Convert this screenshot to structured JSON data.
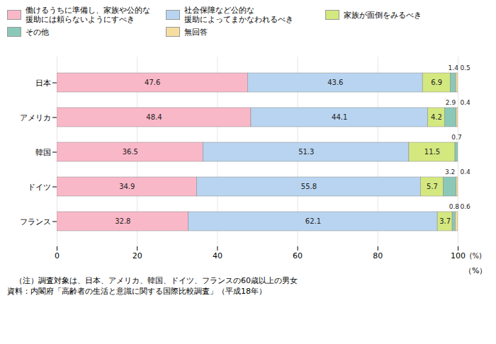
{
  "chart_data": {
    "type": "bar",
    "orientation": "horizontal",
    "stacked": true,
    "categories": [
      "日本",
      "アメリカ",
      "韓国",
      "ドイツ",
      "フランス"
    ],
    "series": [
      {
        "name": "働けるうちに準備し、家族や公的な\n援助には頼らないようにすべき",
        "color": "#f9b8c8",
        "values": [
          47.6,
          48.4,
          36.5,
          34.9,
          32.8
        ]
      },
      {
        "name": "社会保障など公的な\n援助によってまかなわれるべき",
        "color": "#b8d4f0",
        "values": [
          43.6,
          44.1,
          51.3,
          55.8,
          62.1
        ]
      },
      {
        "name": "家族が面倒をみるべき",
        "color": "#d4e880",
        "values": [
          6.9,
          4.2,
          11.5,
          5.7,
          3.7
        ]
      },
      {
        "name": "その他",
        "color": "#8bc8b8",
        "values": [
          1.4,
          2.9,
          0.7,
          3.2,
          0.8
        ]
      },
      {
        "name": "無回答",
        "color": "#f5dea0",
        "values": [
          0.5,
          0.4,
          0.0,
          0.4,
          0.6
        ],
        "value_labels": [
          "0.5",
          "0.4",
          null,
          "0.4",
          "0.6"
        ]
      }
    ],
    "xlabel": "（%）",
    "xlim": [
      0,
      100
    ],
    "xticks": [
      0,
      20,
      40,
      60,
      80,
      100
    ],
    "grid": true,
    "data_labels": true,
    "legend": "top",
    "annotations": [
      "(%)"
    ],
    "caption": [
      "　（注）調査対象は、日本、アメリカ、韓国、ドイツ、フランスの60歳以上の男女",
      "資料：内閣府「高齢者の生活と意識に関する国際比較調査」（平成18年）"
    ]
  }
}
